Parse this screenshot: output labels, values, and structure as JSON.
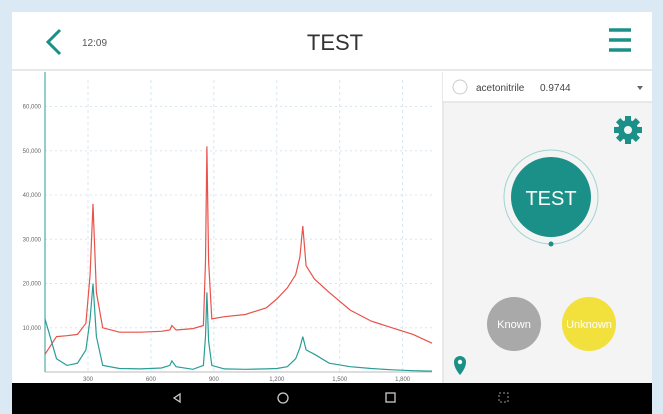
{
  "header": {
    "time": "12:09",
    "title": "TEST"
  },
  "result": {
    "compound": "acetonitrile",
    "score": "0.9744"
  },
  "buttons": {
    "test": "TEST",
    "known": "Known",
    "unknown": "Unknown"
  },
  "chart_data": {
    "type": "line",
    "x": [
      95,
      150,
      200,
      250,
      290,
      310,
      324,
      340,
      370,
      450,
      550,
      650,
      690,
      700,
      720,
      800,
      850,
      860,
      867,
      875,
      890,
      950,
      1050,
      1150,
      1200,
      1250,
      1290,
      1310,
      1324,
      1340,
      1380,
      1450,
      1550,
      1650,
      1750,
      1850,
      1940
    ],
    "series": [
      {
        "color": "#e8524a",
        "values": [
          4000,
          8000,
          8200,
          8500,
          11000,
          22000,
          38000,
          18000,
          10000,
          9000,
          9000,
          9200,
          9500,
          10500,
          9500,
          9800,
          10500,
          25000,
          51000,
          25000,
          12000,
          12500,
          13000,
          14500,
          16500,
          19000,
          22000,
          26000,
          33000,
          24000,
          21000,
          18000,
          14000,
          11500,
          10000,
          8500,
          6500
        ]
      },
      {
        "color": "#2a9d96",
        "values": [
          12000,
          3000,
          1500,
          2000,
          5000,
          12000,
          20000,
          8000,
          1500,
          800,
          700,
          900,
          1500,
          2500,
          1200,
          600,
          1500,
          8000,
          18000,
          7000,
          1500,
          700,
          600,
          700,
          800,
          1200,
          3000,
          5500,
          8000,
          5000,
          4000,
          2000,
          1200,
          800,
          500,
          300,
          200
        ]
      }
    ],
    "xlim": [
      95,
      1940
    ],
    "ylim": [
      0,
      66000
    ],
    "xticks": [
      300,
      600,
      900,
      {
        "value": 1200,
        "label": "1,200"
      },
      {
        "value": 1500,
        "label": "1,500"
      },
      {
        "value": 1800,
        "label": "1,800"
      }
    ],
    "yticks": [
      {
        "value": 10000,
        "label": "10,000"
      },
      {
        "value": 20000,
        "label": "20,000"
      },
      {
        "value": 30000,
        "label": "30,000"
      },
      {
        "value": 40000,
        "label": "40,000"
      },
      {
        "value": 50000,
        "label": "50,000"
      },
      {
        "value": 60000,
        "label": "60,000"
      }
    ],
    "grid": true
  }
}
